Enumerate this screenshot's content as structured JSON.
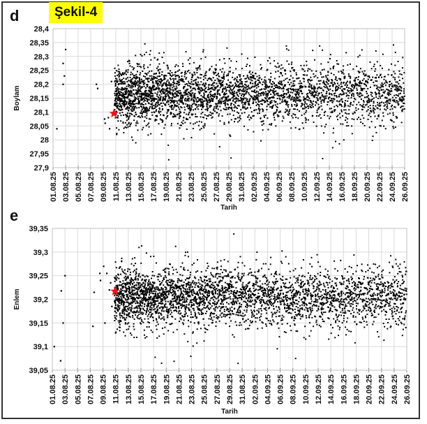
{
  "figure_title": "Şekil-4",
  "chart_data": [
    {
      "panel": "d",
      "type": "scatter",
      "title": "",
      "xlabel": "Tarih",
      "ylabel": "Boylam",
      "ylim": [
        27.9,
        28.4
      ],
      "ystep": 0.05,
      "yticks": [
        "28,4",
        "28,35",
        "28,3",
        "28,25",
        "28,2",
        "28,15",
        "28,1",
        "28,05",
        "28",
        "27,95",
        "27,9"
      ],
      "xlim_days": [
        0,
        56
      ],
      "xticks": [
        "01.08.25",
        "03.08.25",
        "05.08.25",
        "07.08.25",
        "09.08.25",
        "11.08.25",
        "13.08.25",
        "15.08.25",
        "17.08.25",
        "19.08.25",
        "21.08.25",
        "23.08.25",
        "25.08.25",
        "27.08.25",
        "29.08.25",
        "31.08.25",
        "02.09.25",
        "04.09.25",
        "06.09.25",
        "08.09.25",
        "10.09.25",
        "12.09.25",
        "14.09.25",
        "16.09.25",
        "18.09.25",
        "20.09.25",
        "22.09.25",
        "24.09.25",
        "26.09.25"
      ],
      "grid": true,
      "marker_color": "#000000",
      "mainshock": {
        "day": 9.7,
        "value": 28.095,
        "color": "#e8141c"
      },
      "sparse_points": [
        [
          0.6,
          28.04
        ],
        [
          1.6,
          28.2
        ],
        [
          1.6,
          28.275
        ],
        [
          1.8,
          28.23
        ],
        [
          2.0,
          28.325
        ],
        [
          6.9,
          28.2
        ],
        [
          7.1,
          28.185
        ],
        [
          8.2,
          28.075
        ],
        [
          8.3,
          28.06
        ],
        [
          8.8,
          28.08
        ],
        [
          9.3,
          28.21
        ],
        [
          9.0,
          28.04
        ]
      ],
      "cloud": {
        "start_day": 9.8,
        "end_day": 56,
        "center": 28.165,
        "spread": 0.05,
        "min": 27.9,
        "max": 28.35
      }
    },
    {
      "panel": "e",
      "type": "scatter",
      "title": "",
      "xlabel": "Tarih",
      "ylabel": "Enlem",
      "ylim": [
        39.05,
        39.35
      ],
      "ystep": 0.05,
      "yticks": [
        "39,35",
        "39,3",
        "39,25",
        "39,2",
        "39,15",
        "39,1",
        "39,05"
      ],
      "xlim_days": [
        0,
        56
      ],
      "xticks": [
        "01.08.25",
        "03.08.25",
        "05.08.25",
        "07.08.25",
        "09.08.25",
        "11.08.25",
        "13.08.25",
        "15.08.25",
        "17.08.25",
        "19.08.25",
        "21.08.25",
        "23.08.25",
        "25.08.25",
        "27.08.25",
        "29.08.25",
        "31.08.25",
        "02.09.25",
        "04.09.25",
        "06.09.25",
        "08.09.25",
        "10.09.25",
        "12.09.25",
        "14.09.25",
        "16.09.25",
        "18.09.25",
        "20.09.25",
        "22.09.25",
        "24.09.25",
        "26.09.25"
      ],
      "grid": true,
      "marker_color": "#000000",
      "mainshock": {
        "day": 9.9,
        "value": 39.217,
        "color": "#e8141c"
      },
      "sparse_points": [
        [
          0.3,
          39.1
        ],
        [
          1.3,
          39.07
        ],
        [
          1.4,
          39.218
        ],
        [
          1.7,
          39.15
        ],
        [
          2.0,
          39.25
        ],
        [
          6.4,
          39.143
        ],
        [
          6.6,
          39.215
        ],
        [
          7.5,
          39.255
        ],
        [
          7.6,
          39.24
        ],
        [
          8.1,
          39.27
        ],
        [
          8.3,
          39.15
        ],
        [
          8.6,
          39.255
        ],
        [
          9.2,
          39.235
        ],
        [
          9.0,
          39.22
        ],
        [
          9.4,
          39.185
        ]
      ],
      "cloud": {
        "start_day": 9.8,
        "end_day": 56,
        "center": 39.205,
        "spread": 0.028,
        "min": 39.06,
        "max": 39.34
      }
    }
  ]
}
